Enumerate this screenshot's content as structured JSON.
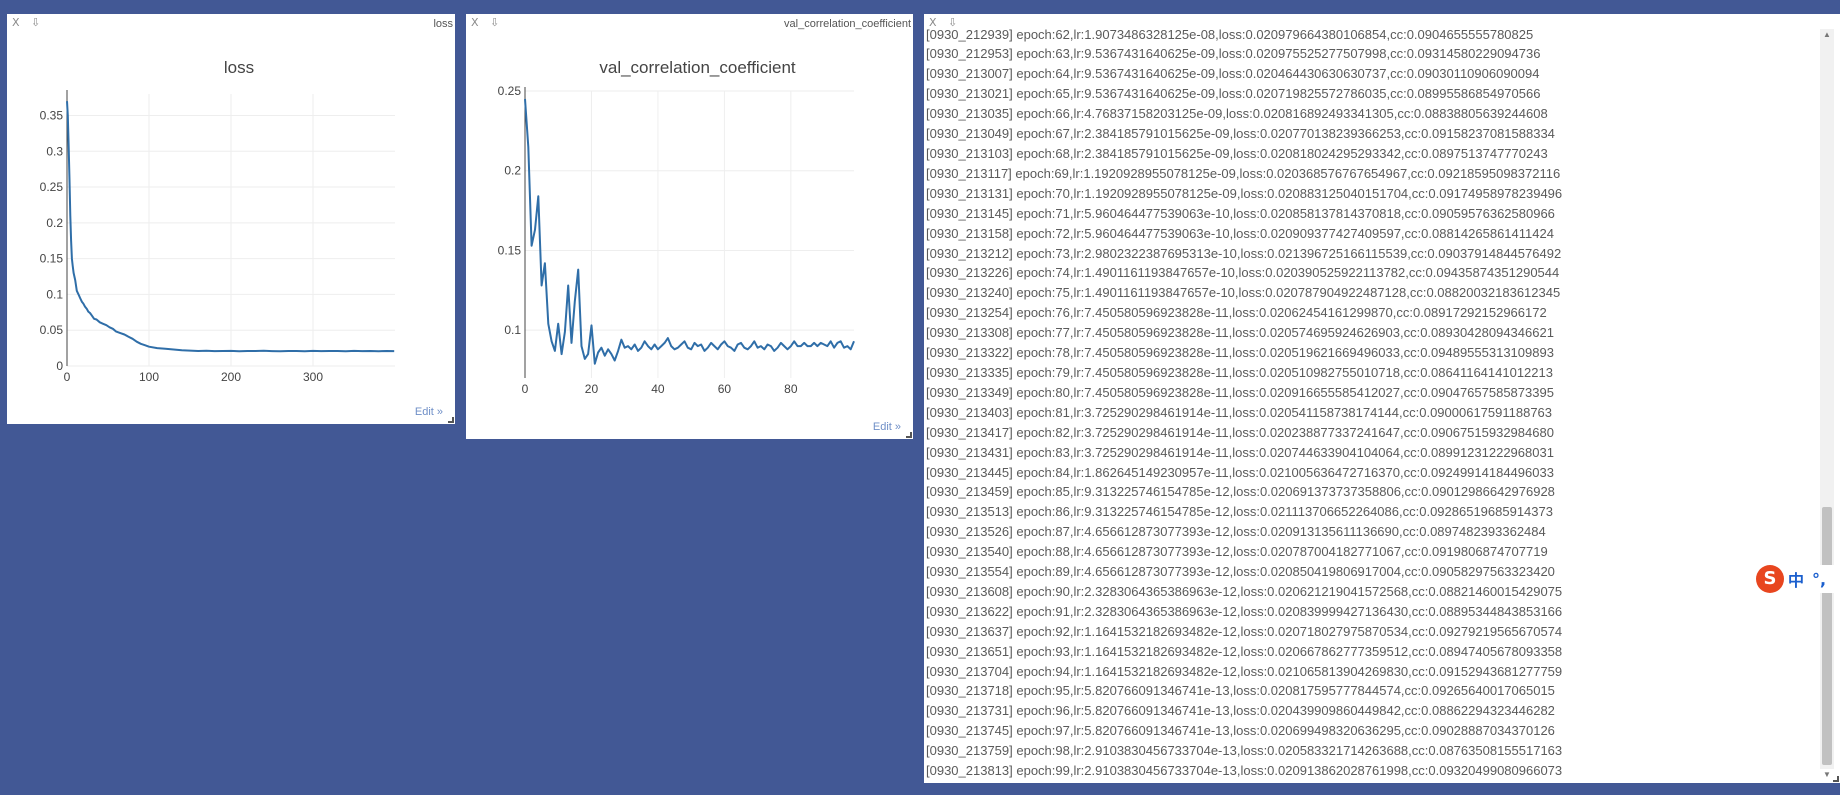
{
  "panes": {
    "loss": {
      "controls": {
        "close": "X",
        "download": "⇩"
      },
      "tag": "loss",
      "edit_label": "Edit »"
    },
    "cc": {
      "controls": {
        "close": "X",
        "download": "⇩"
      },
      "tag": "val_correlation_coefficient",
      "edit_label": "Edit »"
    },
    "log": {
      "controls": {
        "close": "X",
        "download": "⇩"
      },
      "lines": [
        "[0930_212939] epoch:62,lr:1.9073486328125e-08,loss:0.020979664380106854,cc:0.0904655555780825",
        "[0930_212953] epoch:63,lr:9.5367431640625e-09,loss:0.020975525277507998,cc:0.09314580229094736",
        "[0930_213007] epoch:64,lr:9.5367431640625e-09,loss:0.020464430630630737,cc:0.09030110906090094",
        "[0930_213021] epoch:65,lr:9.5367431640625e-09,loss:0.020719825572786035,cc:0.08995586854970566",
        "[0930_213035] epoch:66,lr:4.76837158203125e-09,loss:0.020816892493341305,cc:0.08838805639244608",
        "[0930_213049] epoch:67,lr:2.384185791015625e-09,loss:0.020770138239366253,cc:0.09158237081588334",
        "[0930_213103] epoch:68,lr:2.384185791015625e-09,loss:0.020818024295293342,cc:0.0897513747770243",
        "[0930_213117] epoch:69,lr:1.1920928955078125e-09,loss:0.020368576767654967,cc:0.09218595098372116",
        "[0930_213131] epoch:70,lr:1.1920928955078125e-09,loss:0.020883125040151704,cc:0.09174958978239496",
        "[0930_213145] epoch:71,lr:5.960464477539063e-10,loss:0.020858137814370818,cc:0.09059576362580966",
        "[0930_213158] epoch:72,lr:5.960464477539063e-10,loss:0.020909377427409597,cc:0.08814265861411424",
        "[0930_213212] epoch:73,lr:2.9802322387695313e-10,loss:0.021396725166115539,cc:0.09037914844576492",
        "[0930_213226] epoch:74,lr:1.4901161193847657e-10,loss:0.020390525922113782,cc:0.09435874351290544",
        "[0930_213240] epoch:75,lr:1.4901161193847657e-10,loss:0.020787904922487128,cc:0.08820032183612345",
        "[0930_213254] epoch:76,lr:7.450580596923828e-11,loss:0.02062454161299870,cc:0.08917292152966172",
        "[0930_213308] epoch:77,lr:7.450580596923828e-11,loss:0.020574695924626903,cc:0.08930428094346621",
        "[0930_213322] epoch:78,lr:7.450580596923828e-11,loss:0.020519621669496033,cc:0.09489555313109893",
        "[0930_213335] epoch:79,lr:7.450580596923828e-11,loss:0.020510982755010718,cc:0.08641164141012213",
        "[0930_213349] epoch:80,lr:7.450580596923828e-11,loss:0.020916655585412027,cc:0.09047657585873395",
        "[0930_213403] epoch:81,lr:3.725290298461914e-11,loss:0.020541158738174144,cc:0.09000617591188763",
        "[0930_213417] epoch:82,lr:3.725290298461914e-11,loss:0.020238877337241647,cc:0.09067515932984680",
        "[0930_213431] epoch:83,lr:3.725290298461914e-11,loss:0.020744633904104064,cc:0.08991231222968031",
        "[0930_213445] epoch:84,lr:1.862645149230957e-11,loss:0.021005636472716370,cc:0.09249914184496033",
        "[0930_213459] epoch:85,lr:9.313225746154785e-12,loss:0.020691373737358806,cc:0.09012986642976928",
        "[0930_213513] epoch:86,lr:9.313225746154785e-12,loss:0.021113706652264086,cc:0.09286519685914373",
        "[0930_213526] epoch:87,lr:4.656612873077393e-12,loss:0.020913135611136690,cc:0.0897482393362484",
        "[0930_213540] epoch:88,lr:4.656612873077393e-12,loss:0.020787004182771067,cc:0.0919806874707719",
        "[0930_213554] epoch:89,lr:4.656612873077393e-12,loss:0.020850419806917004,cc:0.09058297563323420",
        "[0930_213608] epoch:90,lr:2.3283064365386963e-12,loss:0.020621219041572568,cc:0.08821460015429075",
        "[0930_213622] epoch:91,lr:2.3283064365386963e-12,loss:0.020839999427136430,cc:0.08895344843853166",
        "[0930_213637] epoch:92,lr:1.1641532182693482e-12,loss:0.020718027975870534,cc:0.09279219565670574",
        "[0930_213651] epoch:93,lr:1.1641532182693482e-12,loss:0.020667862777359512,cc:0.08947405678093358",
        "[0930_213704] epoch:94,lr:1.1641532182693482e-12,loss:0.021065813904269830,cc:0.09152943681277759",
        "[0930_213718] epoch:95,lr:5.820766091346741e-13,loss:0.020817595777844574,cc:0.09265640017065015",
        "[0930_213731] epoch:96,lr:5.820766091346741e-13,loss:0.020439909860449842,cc:0.08862294323446282",
        "[0930_213745] epoch:97,lr:5.820766091346741e-13,loss:0.020699498320636295,cc:0.09028887034370126",
        "[0930_213759] epoch:98,lr:2.9103830456733704e-13,loss:0.020583321714263688,cc:0.08763508155517163",
        "[0930_213813] epoch:99,lr:2.9103830456733704e-13,loss:0.020913862028761998,cc:0.09320499080966073"
      ]
    }
  },
  "ime": {
    "logo": "S",
    "mode": "中",
    "punct": "°,"
  },
  "colors": {
    "line": "#2f6ea8",
    "grid": "#eeeeee",
    "axis": "#444444",
    "background": "#425895"
  },
  "chart_data": [
    {
      "type": "line",
      "title": "loss",
      "xlabel": "",
      "ylabel": "",
      "xlim": [
        0,
        400
      ],
      "ylim": [
        0,
        0.38
      ],
      "xticks": [
        0,
        100,
        200,
        300
      ],
      "yticks": [
        0,
        0.05,
        0.1,
        0.15,
        0.2,
        0.25,
        0.3,
        0.35
      ],
      "grid": true,
      "x": [
        0,
        1,
        2,
        3,
        4,
        5,
        6,
        7,
        8,
        9,
        10,
        12,
        14,
        16,
        18,
        20,
        22,
        24,
        26,
        28,
        30,
        33,
        36,
        40,
        44,
        48,
        52,
        56,
        60,
        65,
        70,
        75,
        80,
        85,
        90,
        95,
        100,
        110,
        120,
        130,
        140,
        150,
        160,
        170,
        180,
        190,
        200,
        210,
        220,
        230,
        240,
        250,
        260,
        270,
        280,
        290,
        300,
        310,
        320,
        330,
        340,
        350,
        360,
        370,
        380,
        390,
        399
      ],
      "y": [
        0.37,
        0.35,
        0.31,
        0.26,
        0.21,
        0.175,
        0.15,
        0.14,
        0.13,
        0.125,
        0.12,
        0.105,
        0.1,
        0.095,
        0.09,
        0.087,
        0.083,
        0.08,
        0.076,
        0.074,
        0.071,
        0.066,
        0.065,
        0.061,
        0.059,
        0.057,
        0.054,
        0.052,
        0.048,
        0.046,
        0.044,
        0.041,
        0.038,
        0.034,
        0.031,
        0.029,
        0.027,
        0.025,
        0.024,
        0.023,
        0.022,
        0.0215,
        0.021,
        0.0212,
        0.0208,
        0.021,
        0.0211,
        0.0207,
        0.0209,
        0.021,
        0.0212,
        0.0208,
        0.0206,
        0.021,
        0.0209,
        0.0207,
        0.0211,
        0.0208,
        0.021,
        0.0209,
        0.0206,
        0.0211,
        0.0208,
        0.021,
        0.0207,
        0.0209,
        0.0208
      ]
    },
    {
      "type": "line",
      "title": "val_correlation_coefficient",
      "xlabel": "",
      "ylabel": "",
      "xlim": [
        0,
        99
      ],
      "ylim": [
        0.07,
        0.25
      ],
      "xticks": [
        0,
        20,
        40,
        60,
        80
      ],
      "yticks": [
        0.1,
        0.15,
        0.2,
        0.25
      ],
      "grid": true,
      "x": [
        0,
        1,
        2,
        3,
        4,
        5,
        6,
        7,
        8,
        9,
        10,
        11,
        12,
        13,
        14,
        15,
        16,
        17,
        18,
        19,
        20,
        21,
        22,
        23,
        24,
        25,
        26,
        27,
        28,
        29,
        30,
        31,
        32,
        33,
        34,
        35,
        36,
        37,
        38,
        39,
        40,
        41,
        42,
        43,
        44,
        45,
        46,
        47,
        48,
        49,
        50,
        51,
        52,
        53,
        54,
        55,
        56,
        57,
        58,
        59,
        60,
        61,
        62,
        63,
        64,
        65,
        66,
        67,
        68,
        69,
        70,
        71,
        72,
        73,
        74,
        75,
        76,
        77,
        78,
        79,
        80,
        81,
        82,
        83,
        84,
        85,
        86,
        87,
        88,
        89,
        90,
        91,
        92,
        93,
        94,
        95,
        96,
        97,
        98,
        99
      ],
      "y": [
        0.245,
        0.215,
        0.153,
        0.163,
        0.184,
        0.128,
        0.142,
        0.104,
        0.093,
        0.087,
        0.104,
        0.085,
        0.099,
        0.128,
        0.092,
        0.118,
        0.138,
        0.09,
        0.082,
        0.085,
        0.103,
        0.079,
        0.086,
        0.089,
        0.084,
        0.088,
        0.085,
        0.081,
        0.087,
        0.094,
        0.089,
        0.09,
        0.088,
        0.091,
        0.087,
        0.089,
        0.093,
        0.09,
        0.088,
        0.091,
        0.088,
        0.09,
        0.092,
        0.095,
        0.09,
        0.088,
        0.089,
        0.091,
        0.093,
        0.089,
        0.088,
        0.092,
        0.09,
        0.091,
        0.087,
        0.089,
        0.092,
        0.09,
        0.088,
        0.091,
        0.093,
        0.09,
        0.089,
        0.087,
        0.091,
        0.092,
        0.089,
        0.088,
        0.09,
        0.093,
        0.089,
        0.09,
        0.088,
        0.091,
        0.09,
        0.087,
        0.089,
        0.092,
        0.09,
        0.088,
        0.09,
        0.093,
        0.09,
        0.09,
        0.092,
        0.09,
        0.09,
        0.092,
        0.09,
        0.092,
        0.091,
        0.09,
        0.093,
        0.089,
        0.092,
        0.093,
        0.089,
        0.09,
        0.088,
        0.093
      ]
    }
  ]
}
